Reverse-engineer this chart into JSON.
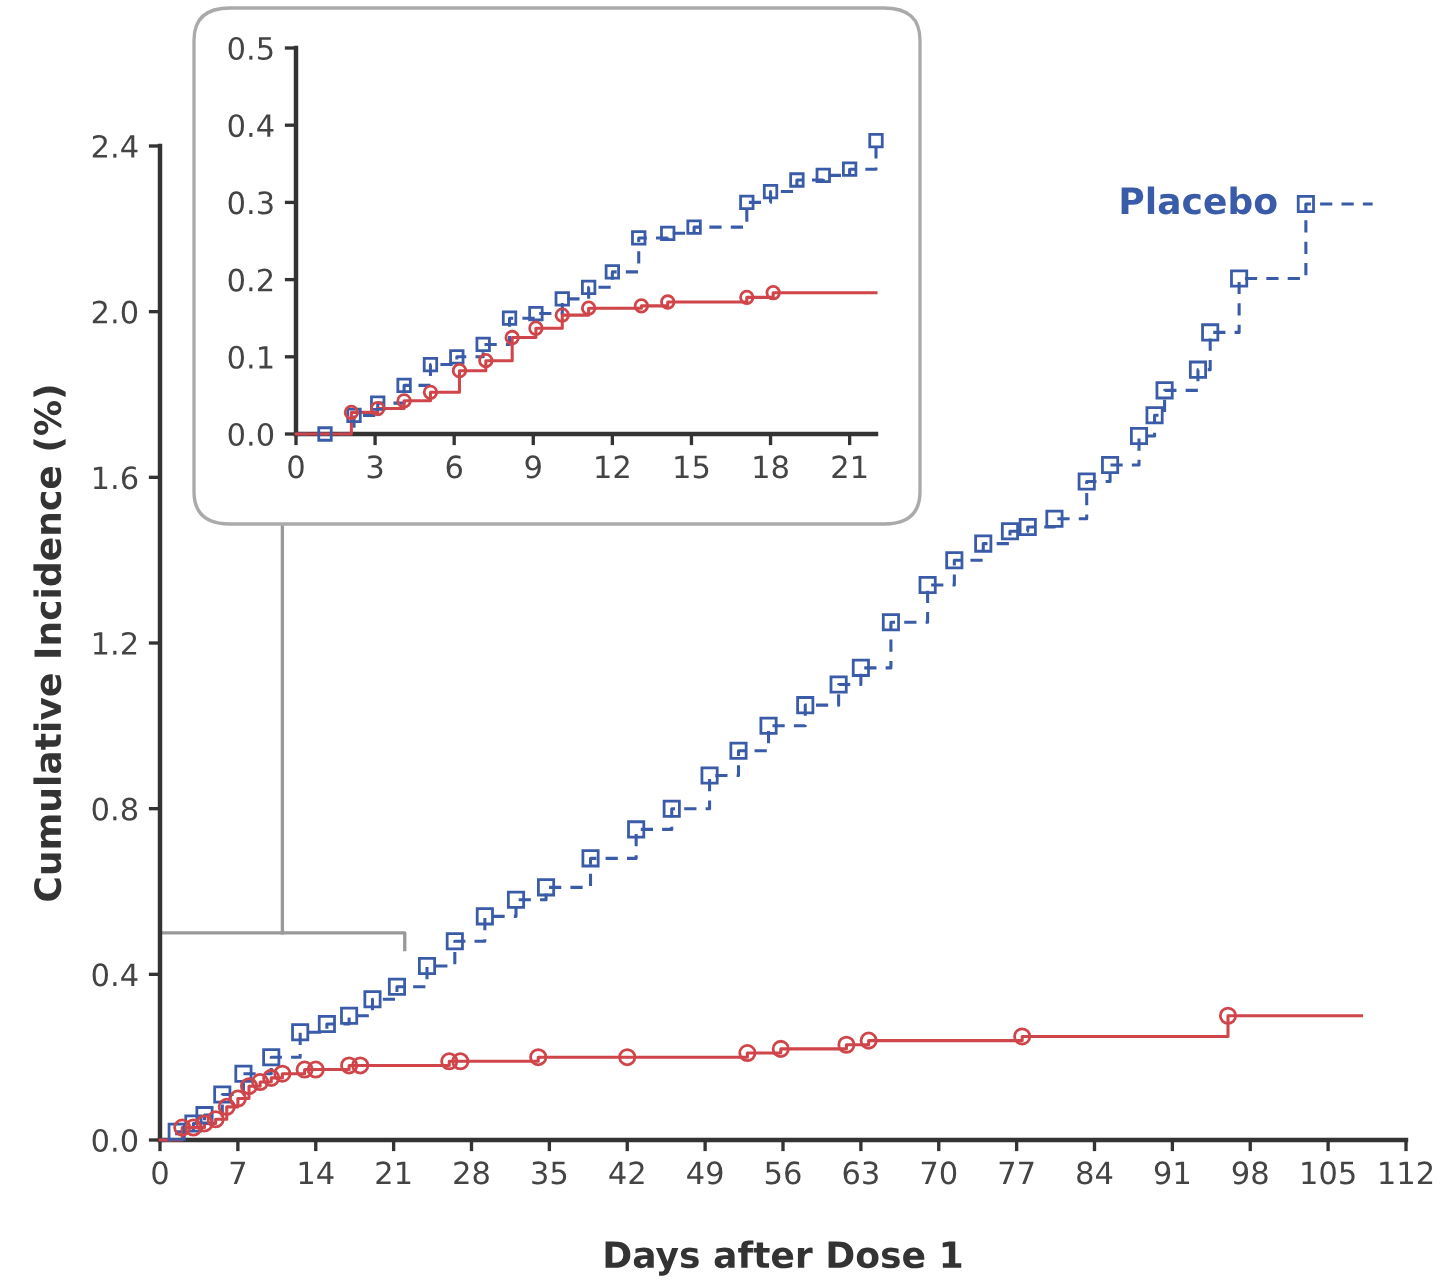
{
  "chart_data": [
    {
      "type": "step",
      "xlabel": "Days after Dose 1",
      "ylabel": "Cumulative Incidence (%)",
      "xlim": [
        0,
        112
      ],
      "ylim": [
        0,
        2.4
      ],
      "xticks": [
        0,
        7,
        14,
        21,
        28,
        35,
        42,
        49,
        56,
        63,
        70,
        77,
        84,
        91,
        98,
        105,
        112
      ],
      "yticks": [
        {
          "value": 0,
          "label": "0.0"
        },
        {
          "value": 0.4,
          "label": "0.4"
        },
        {
          "value": 0.8,
          "label": "0.8"
        },
        {
          "value": 1.2,
          "label": "1.2"
        },
        {
          "value": 1.6,
          "label": "1.6"
        },
        {
          "value": 2.0,
          "label": "2.0"
        },
        {
          "value": 2.4,
          "label": "2.4"
        }
      ],
      "grid": false,
      "legend": false,
      "series": [
        {
          "name": "Placebo",
          "color": "#3a5ba8",
          "marker": "square",
          "line_style": "dashed",
          "x": [
            0,
            1.5,
            3,
            4,
            5.6,
            7.5,
            10,
            12.6,
            15,
            17,
            19.1,
            21.3,
            24,
            26.5,
            29.2,
            32,
            34.7,
            38.7,
            42.8,
            46,
            49.4,
            52,
            54.7,
            58,
            61,
            63,
            65.7,
            69,
            71.4,
            74,
            76.4,
            78,
            80.4,
            83.3,
            85.4,
            88,
            89.4,
            90.3,
            93.3,
            94.4,
            97,
            103,
            109
          ],
          "values": [
            0,
            0.02,
            0.04,
            0.06,
            0.11,
            0.16,
            0.2,
            0.26,
            0.28,
            0.3,
            0.34,
            0.37,
            0.42,
            0.48,
            0.54,
            0.58,
            0.61,
            0.68,
            0.75,
            0.8,
            0.88,
            0.94,
            1.0,
            1.05,
            1.1,
            1.14,
            1.25,
            1.34,
            1.4,
            1.44,
            1.47,
            1.48,
            1.5,
            1.59,
            1.63,
            1.7,
            1.75,
            1.81,
            1.86,
            1.95,
            2.08,
            2.26,
            2.26
          ]
        },
        {
          "color": "#d0454a",
          "marker": "circle",
          "line_style": "solid",
          "x": [
            0,
            2,
            3,
            4,
            5,
            6,
            7,
            8,
            9,
            10,
            11,
            13,
            14,
            17,
            18,
            26,
            27,
            34,
            42,
            52.8,
            55.8,
            61.7,
            63.7,
            77.5,
            96,
            108
          ],
          "values": [
            0,
            0.03,
            0.03,
            0.04,
            0.05,
            0.08,
            0.1,
            0.13,
            0.14,
            0.15,
            0.16,
            0.17,
            0.17,
            0.18,
            0.18,
            0.19,
            0.19,
            0.2,
            0.2,
            0.21,
            0.22,
            0.23,
            0.24,
            0.25,
            0.3,
            0.3
          ]
        }
      ]
    },
    {
      "type": "step",
      "xlim": [
        0,
        22
      ],
      "ylim": [
        0,
        0.5
      ],
      "xticks": [
        0,
        3,
        6,
        9,
        12,
        15,
        18,
        21
      ],
      "yticks": [
        {
          "value": 0,
          "label": "0.0"
        },
        {
          "value": 0.1,
          "label": "0.1"
        },
        {
          "value": 0.2,
          "label": "0.2"
        },
        {
          "value": 0.3,
          "label": "0.3"
        },
        {
          "value": 0.4,
          "label": "0.4"
        },
        {
          "value": 0.5,
          "label": "0.5"
        }
      ],
      "grid": false,
      "legend": false,
      "series": [
        {
          "color": "#3a5ba8",
          "marker": "square",
          "line_style": "dashed",
          "x": [
            0,
            1.1,
            2.2,
            3.1,
            4.1,
            5.1,
            6.1,
            7.1,
            8.1,
            9.1,
            10.1,
            11.1,
            12,
            13,
            14.1,
            15.1,
            17.1,
            18,
            19,
            20,
            21,
            22
          ],
          "values": [
            0,
            0.0,
            0.024,
            0.04,
            0.063,
            0.09,
            0.1,
            0.116,
            0.15,
            0.156,
            0.175,
            0.19,
            0.21,
            0.254,
            0.26,
            0.268,
            0.3,
            0.314,
            0.329,
            0.335,
            0.343,
            0.38
          ]
        },
        {
          "color": "#d0454a",
          "marker": "circle",
          "line_style": "solid",
          "x": [
            0,
            2.1,
            3.1,
            4.1,
            5.1,
            6.2,
            7.2,
            8.2,
            9.1,
            10.1,
            11.1,
            13.1,
            14.1,
            17.1,
            18.1,
            22
          ],
          "values": [
            0,
            0.028,
            0.033,
            0.043,
            0.054,
            0.082,
            0.095,
            0.125,
            0.137,
            0.154,
            0.163,
            0.166,
            0.171,
            0.177,
            0.183,
            0.183
          ]
        }
      ]
    }
  ]
}
